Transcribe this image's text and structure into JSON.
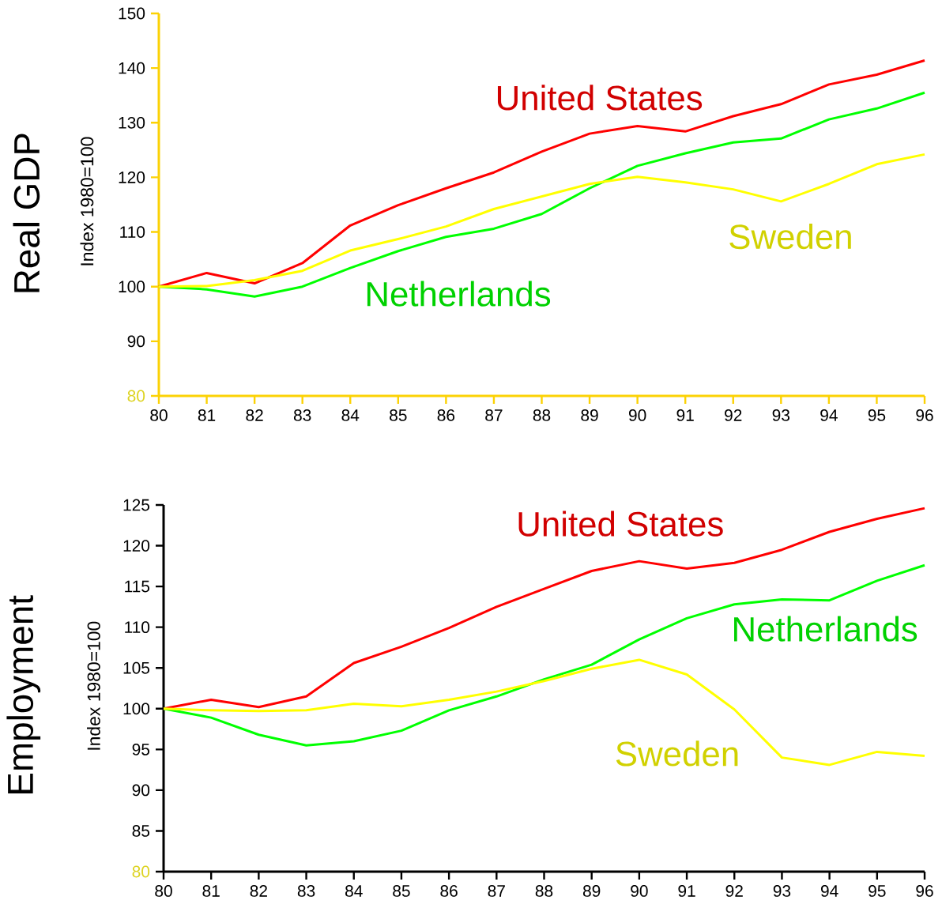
{
  "chart_data": [
    {
      "type": "line",
      "title": "Real GDP",
      "ylabel": "Index 1980=100",
      "x": [
        80,
        81,
        82,
        83,
        84,
        85,
        86,
        87,
        88,
        89,
        90,
        91,
        92,
        93,
        94,
        95,
        96
      ],
      "xlim": [
        80,
        96
      ],
      "xticks": [
        80,
        81,
        82,
        83,
        84,
        85,
        86,
        87,
        88,
        89,
        90,
        91,
        92,
        93,
        94,
        95,
        96
      ],
      "ylim": [
        80,
        150
      ],
      "yticks": [
        80,
        90,
        100,
        110,
        120,
        130,
        140,
        150
      ],
      "series": [
        {
          "name": "United States",
          "color": "#ff0000",
          "values": [
            100,
            102.5,
            100.6,
            104.3,
            111.2,
            114.9,
            118,
            120.9,
            124.7,
            128,
            129.4,
            128.4,
            131.2,
            133.4,
            137,
            138.8,
            141.4
          ]
        },
        {
          "name": "Netherlands",
          "color": "#00ff00",
          "values": [
            100,
            99.5,
            98.2,
            100,
            103.4,
            106.5,
            109.1,
            110.6,
            113.3,
            118,
            122.1,
            124.4,
            126.4,
            127.1,
            130.6,
            132.6,
            135.5
          ]
        },
        {
          "name": "Sweden",
          "color": "#ffff00",
          "values": [
            100,
            100.1,
            101.2,
            102.9,
            106.6,
            108.7,
            111,
            114.2,
            116.5,
            118.8,
            120.1,
            119.1,
            117.8,
            115.6,
            118.8,
            122.4,
            124.2
          ]
        }
      ]
    },
    {
      "type": "line",
      "title": "Employment",
      "ylabel": "Index 1980=100",
      "x": [
        80,
        81,
        82,
        83,
        84,
        85,
        86,
        87,
        88,
        89,
        90,
        91,
        92,
        93,
        94,
        95,
        96
      ],
      "xlim": [
        80,
        96
      ],
      "xticks": [
        80,
        81,
        82,
        83,
        84,
        85,
        86,
        87,
        88,
        89,
        90,
        91,
        92,
        93,
        94,
        95,
        96
      ],
      "ylim": [
        80,
        125
      ],
      "yticks": [
        80,
        85,
        90,
        95,
        100,
        105,
        110,
        115,
        120,
        125
      ],
      "series": [
        {
          "name": "United States",
          "color": "#ff0000",
          "values": [
            100,
            101.1,
            100.2,
            101.5,
            105.6,
            107.6,
            109.9,
            112.5,
            114.7,
            116.9,
            118.1,
            117.2,
            117.9,
            119.5,
            121.7,
            123.3,
            124.6
          ]
        },
        {
          "name": "Netherlands",
          "color": "#00ff00",
          "values": [
            100,
            98.9,
            96.8,
            95.5,
            96,
            97.3,
            99.8,
            101.5,
            103.6,
            105.4,
            108.5,
            111.1,
            112.8,
            113.4,
            113.3,
            115.7,
            117.6
          ]
        },
        {
          "name": "Sweden",
          "color": "#ffff00",
          "values": [
            100,
            99.8,
            99.7,
            99.8,
            100.6,
            100.3,
            101.1,
            102.1,
            103.4,
            104.9,
            106,
            104.2,
            99.9,
            94,
            93.1,
            94.7,
            94.2
          ]
        }
      ]
    }
  ]
}
